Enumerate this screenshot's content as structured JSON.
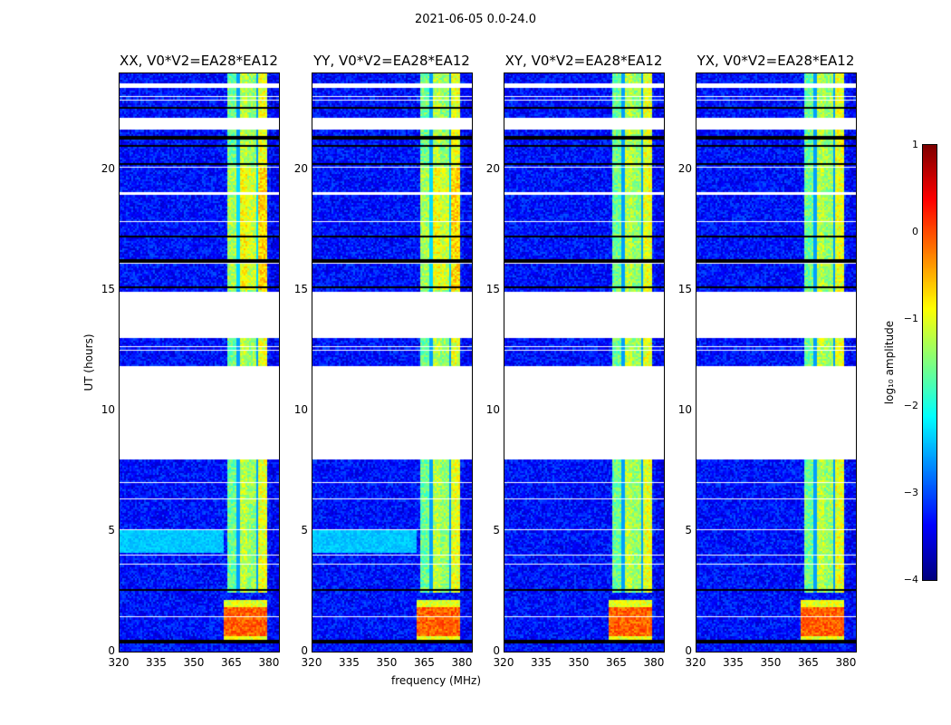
{
  "figure_title": "2021-06-05 0.0-24.0",
  "chart_data": [
    {
      "type": "heatmap",
      "title": "XX, V0*V2=EA28*EA12",
      "cyan_patch": true
    },
    {
      "type": "heatmap",
      "title": "YY, V0*V2=EA28*EA12",
      "cyan_patch": true
    },
    {
      "type": "heatmap",
      "title": "XY, V0*V2=EA28*EA12",
      "cyan_patch": false
    },
    {
      "type": "heatmap",
      "title": "YX, V0*V2=EA28*EA12",
      "cyan_patch": false
    }
  ],
  "axes": {
    "xlabel": "frequency (MHz)",
    "ylabel": "UT (hours)",
    "xlim": [
      320,
      384
    ],
    "ylim": [
      0,
      24
    ],
    "xticks": [
      "320",
      "335",
      "350",
      "365",
      "380"
    ],
    "xtick_values": [
      320,
      335,
      350,
      365,
      380
    ],
    "yticks": [
      "0",
      "5",
      "10",
      "15",
      "20"
    ],
    "ytick_values": [
      0,
      5,
      10,
      15,
      20
    ]
  },
  "heatmap_model": {
    "background_log_amp": -3.3,
    "flag_gaps_hours": [
      [
        12.95,
        14.95
      ],
      [
        7.95,
        11.85
      ],
      [
        21.57,
        22.13
      ],
      [
        23.3,
        23.55
      ],
      [
        12.45,
        12.55
      ],
      [
        12.6,
        12.65
      ],
      [
        5.05,
        5.12
      ],
      [
        1.45,
        1.52
      ],
      [
        3.6,
        3.65
      ],
      [
        16.05,
        16.1
      ],
      [
        19.0,
        19.05
      ],
      [
        19.4,
        19.45
      ],
      [
        20.05,
        20.1
      ],
      [
        22.8,
        22.85
      ],
      [
        22.95,
        23.0
      ],
      [
        6.3,
        6.35
      ],
      [
        7.0,
        7.05
      ],
      [
        17.8,
        17.85
      ],
      [
        4.0,
        4.05
      ],
      [
        18.9,
        18.95
      ]
    ],
    "zero_lines_hours": [
      15.1,
      20.2,
      21.3,
      16.2,
      17.2,
      0.45,
      2.6,
      22.55,
      20.95
    ],
    "rfi_band_mhz": [
      364,
      380
    ],
    "rfi_band_hours": [
      2.5,
      24
    ],
    "strong_rfi_hours": [
      0.4,
      2.2
    ],
    "strong_rfi_mhz": [
      362,
      380
    ],
    "cyan_patch_hours": [
      4.1,
      5.0
    ],
    "cyan_patch_mhz": [
      320,
      362
    ]
  },
  "colorbar": {
    "label": "log₁₀ amplitude",
    "range": [
      -4,
      1
    ],
    "ticks": [
      "1",
      "0",
      "−1",
      "−2",
      "−3",
      "−4"
    ],
    "tick_values": [
      1,
      0,
      -1,
      -2,
      -3,
      -4
    ],
    "colormap": "jet"
  }
}
